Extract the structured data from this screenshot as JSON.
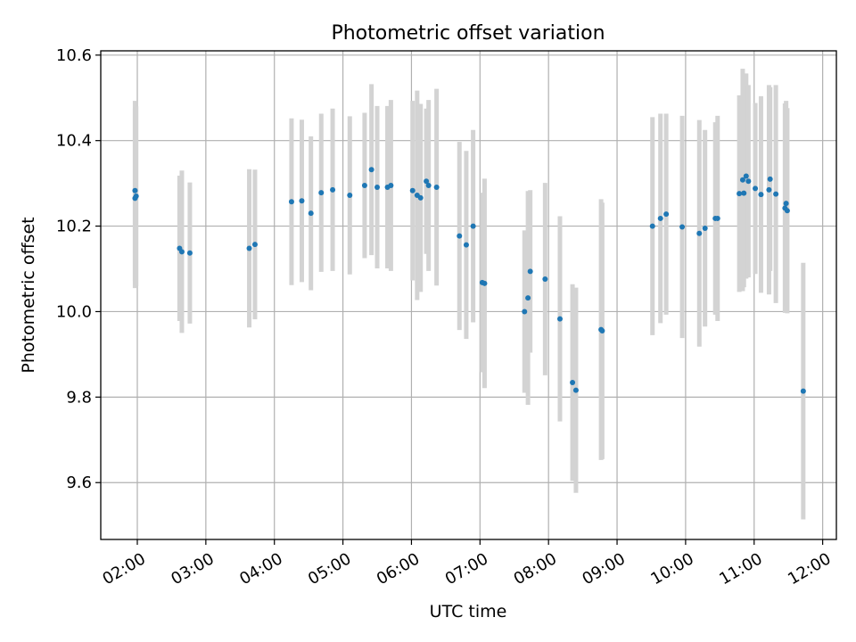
{
  "chart_data": {
    "type": "scatter",
    "title": "Photometric offset variation",
    "xlabel": "UTC time",
    "ylabel": "Photometric offset",
    "grid": true,
    "legend": "none",
    "xlim": [
      "01:28",
      "12:12"
    ],
    "ylim": [
      9.467,
      10.61
    ],
    "x_ticks": [
      "02:00",
      "03:00",
      "04:00",
      "05:00",
      "06:00",
      "07:00",
      "08:00",
      "09:00",
      "10:00",
      "11:00",
      "12:00"
    ],
    "y_ticks": [
      9.6,
      9.8,
      10.0,
      10.2,
      10.4,
      10.6
    ],
    "y_tick_labels": [
      "9.6",
      "9.8",
      "10.0",
      "10.2",
      "10.4",
      "10.6"
    ],
    "colors": {
      "points": "#1f77b4",
      "errorbars": "#d3d3d3",
      "grid": "#b0b0b0"
    },
    "series": [
      {
        "x": [
          "01:58",
          "01:58",
          "01:59",
          "02:37",
          "02:39",
          "02:46",
          "03:38",
          "03:43",
          "04:15",
          "04:24",
          "04:32",
          "04:41",
          "04:51",
          "05:06",
          "05:19",
          "05:25",
          "05:30",
          "05:39",
          "05:42",
          "06:01",
          "06:05",
          "06:08",
          "06:13",
          "06:15",
          "06:22",
          "06:42",
          "06:48",
          "06:54",
          "07:02",
          "07:04",
          "07:39",
          "07:42",
          "07:44",
          "07:57",
          "08:10",
          "08:21",
          "08:24",
          "08:46",
          "08:47",
          "09:31",
          "09:38",
          "09:43",
          "09:57",
          "10:12",
          "10:17",
          "10:26",
          "10:28",
          "10:47",
          "10:50",
          "10:51",
          "10:53",
          "10:55",
          "11:01",
          "11:06",
          "11:13",
          "11:14",
          "11:19",
          "11:27",
          "11:28",
          "11:29",
          "11:43"
        ],
        "y": [
          10.265,
          10.283,
          10.27,
          10.148,
          10.14,
          10.137,
          10.148,
          10.157,
          10.257,
          10.259,
          10.23,
          10.278,
          10.285,
          10.272,
          10.295,
          10.332,
          10.291,
          10.291,
          10.295,
          10.283,
          10.272,
          10.266,
          10.305,
          10.295,
          10.291,
          10.177,
          10.156,
          10.2,
          10.068,
          10.066,
          10.0,
          10.032,
          10.094,
          10.076,
          9.983,
          9.834,
          9.816,
          9.958,
          9.955,
          10.2,
          10.218,
          10.228,
          10.198,
          10.183,
          10.195,
          10.218,
          10.218,
          10.276,
          10.308,
          10.277,
          10.317,
          10.305,
          10.288,
          10.274,
          10.285,
          10.31,
          10.275,
          10.242,
          10.253,
          10.236,
          9.814
        ],
        "yerr": [
          0.21,
          0.21,
          0.21,
          0.17,
          0.19,
          0.165,
          0.185,
          0.175,
          0.195,
          0.19,
          0.18,
          0.185,
          0.19,
          0.185,
          0.17,
          0.2,
          0.19,
          0.19,
          0.2,
          0.21,
          0.245,
          0.22,
          0.17,
          0.2,
          0.23,
          0.22,
          0.22,
          0.225,
          0.21,
          0.245,
          0.19,
          0.25,
          0.19,
          0.225,
          0.24,
          0.23,
          0.24,
          0.305,
          0.3,
          0.255,
          0.245,
          0.235,
          0.26,
          0.265,
          0.23,
          0.225,
          0.24,
          0.23,
          0.26,
          0.22,
          0.24,
          0.225,
          0.2,
          0.23,
          0.245,
          0.215,
          0.255,
          0.245,
          0.24,
          0.24,
          0.3
        ]
      }
    ]
  }
}
